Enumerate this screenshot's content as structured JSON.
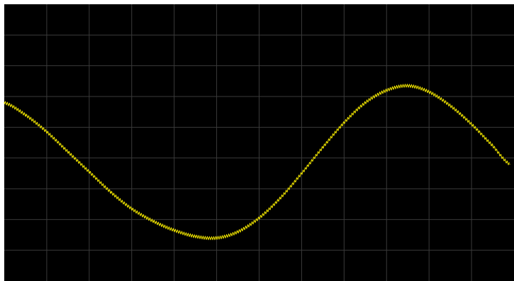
{
  "colors": {
    "background": "#000000",
    "grid": "#3a3a3a",
    "trace": "#f2e600",
    "border": "#ffffff"
  },
  "chart_data": {
    "type": "line",
    "title": "",
    "xlabel": "",
    "ylabel": "",
    "grid": true,
    "grid_divisions": {
      "x": 12,
      "y": 9
    },
    "xlim": [
      0,
      12
    ],
    "ylim": [
      0,
      9
    ],
    "series": [
      {
        "trace_color": "#f2e600",
        "x": [
          0,
          0.5,
          1,
          1.5,
          2,
          2.5,
          3,
          3.5,
          4,
          4.5,
          5,
          5.5,
          6,
          6.5,
          7,
          7.5,
          8,
          8.5,
          9,
          9.5,
          10,
          10.5,
          11,
          11.5,
          11.9
        ],
        "y": [
          5.8,
          5.4,
          4.85,
          4.2,
          3.55,
          2.9,
          2.35,
          1.95,
          1.65,
          1.45,
          1.4,
          1.6,
          2.05,
          2.7,
          3.5,
          4.35,
          5.15,
          5.8,
          6.2,
          6.35,
          6.15,
          5.7,
          5.1,
          4.4,
          3.8
        ]
      }
    ]
  }
}
